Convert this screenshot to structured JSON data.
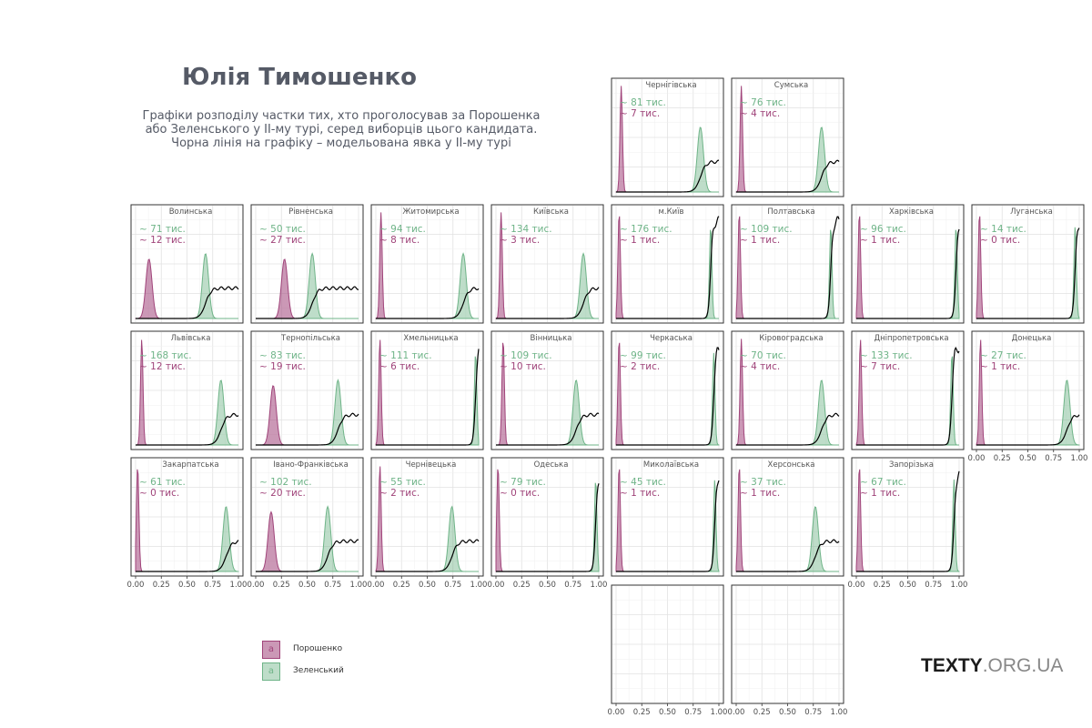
{
  "title": "Юлія Тимошенко",
  "subtitle": "Графіки розподілу частки тих, хто проголосував за Порошенка\nабо Зеленського у ІІ-му турі, серед виборців цього кандидата.\nЧорна лінія на графіку – модельована явка у ІІ-му турі",
  "brand": {
    "main": "TEXTY",
    "dot": ".ORG.UA"
  },
  "colors": {
    "poroshenko": "#a0447a",
    "zelensky": "#6fb488",
    "turnout": "#000000"
  },
  "legend": [
    {
      "name": "Порошенко",
      "key": "a",
      "color": "#a0447a"
    },
    {
      "name": "Зеленський",
      "key": "a",
      "color": "#6fb488"
    }
  ],
  "chart_data": {
    "type": "area",
    "xlim": [
      0,
      1
    ],
    "x_ticks": [
      "0.00",
      "0.25",
      "0.50",
      "0.75",
      "1.00"
    ],
    "grid": true,
    "legend_position": "bottom-left",
    "panels": [
      {
        "name": "Чернігівська",
        "row": 0,
        "col": 4,
        "zelensky_k": "81",
        "poroshenko_k": "7",
        "unit": "тис.",
        "p_center": 0.05,
        "z_center": 0.82
      },
      {
        "name": "Сумська",
        "row": 0,
        "col": 5,
        "zelensky_k": "76",
        "poroshenko_k": "4",
        "unit": "тис.",
        "p_center": 0.05,
        "z_center": 0.83
      },
      {
        "name": "Волинська",
        "row": 1,
        "col": 0,
        "zelensky_k": "71",
        "poroshenko_k": "12",
        "unit": "тис.",
        "p_center": 0.13,
        "z_center": 0.68
      },
      {
        "name": "Рівненська",
        "row": 1,
        "col": 1,
        "zelensky_k": "50",
        "poroshenko_k": "27",
        "unit": "тис.",
        "p_center": 0.28,
        "z_center": 0.55
      },
      {
        "name": "Житомирська",
        "row": 1,
        "col": 2,
        "zelensky_k": "94",
        "poroshenko_k": "8",
        "unit": "тис.",
        "p_center": 0.05,
        "z_center": 0.85
      },
      {
        "name": "Київська",
        "row": 1,
        "col": 3,
        "zelensky_k": "134",
        "poroshenko_k": "3",
        "unit": "тис.",
        "p_center": 0.05,
        "z_center": 0.85
      },
      {
        "name": "м.Київ",
        "row": 1,
        "col": 4,
        "zelensky_k": "176",
        "poroshenko_k": "1",
        "unit": "тис.",
        "p_center": 0.03,
        "z_center": 0.92
      },
      {
        "name": "Полтавська",
        "row": 1,
        "col": 5,
        "zelensky_k": "109",
        "poroshenko_k": "1",
        "unit": "тис.",
        "p_center": 0.03,
        "z_center": 0.92
      },
      {
        "name": "Харківська",
        "row": 1,
        "col": 6,
        "zelensky_k": "96",
        "poroshenko_k": "1",
        "unit": "тис.",
        "p_center": 0.03,
        "z_center": 0.97
      },
      {
        "name": "Луганська",
        "row": 1,
        "col": 7,
        "zelensky_k": "14",
        "poroshenko_k": "0",
        "unit": "тис.",
        "p_center": 0.03,
        "z_center": 0.96
      },
      {
        "name": "Львівська",
        "row": 2,
        "col": 0,
        "zelensky_k": "168",
        "poroshenko_k": "12",
        "unit": "тис.",
        "p_center": 0.06,
        "z_center": 0.83
      },
      {
        "name": "Тернопільська",
        "row": 2,
        "col": 1,
        "zelensky_k": "83",
        "poroshenko_k": "19",
        "unit": "тис.",
        "p_center": 0.17,
        "z_center": 0.8
      },
      {
        "name": "Хмельницька",
        "row": 2,
        "col": 2,
        "zelensky_k": "111",
        "poroshenko_k": "6",
        "unit": "тис.",
        "p_center": 0.04,
        "z_center": 0.97
      },
      {
        "name": "Вінницька",
        "row": 2,
        "col": 3,
        "zelensky_k": "109",
        "poroshenko_k": "10",
        "unit": "тис.",
        "p_center": 0.07,
        "z_center": 0.78
      },
      {
        "name": "Черкаська",
        "row": 2,
        "col": 4,
        "zelensky_k": "99",
        "poroshenko_k": "2",
        "unit": "тис.",
        "p_center": 0.03,
        "z_center": 0.95
      },
      {
        "name": "Кіровоградська",
        "row": 2,
        "col": 5,
        "zelensky_k": "70",
        "poroshenko_k": "4",
        "unit": "тис.",
        "p_center": 0.05,
        "z_center": 0.83
      },
      {
        "name": "Дніпропетровська",
        "row": 2,
        "col": 6,
        "zelensky_k": "133",
        "poroshenko_k": "7",
        "unit": "тис.",
        "p_center": 0.04,
        "z_center": 0.93
      },
      {
        "name": "Донецька",
        "row": 2,
        "col": 7,
        "zelensky_k": "27",
        "poroshenko_k": "1",
        "unit": "тис.",
        "p_center": 0.04,
        "z_center": 0.88
      },
      {
        "name": "Закарпатська",
        "row": 3,
        "col": 0,
        "zelensky_k": "61",
        "poroshenko_k": "0",
        "unit": "тис.",
        "p_center": 0.02,
        "z_center": 0.88
      },
      {
        "name": "Івано-Франківська",
        "row": 3,
        "col": 1,
        "zelensky_k": "102",
        "poroshenko_k": "20",
        "unit": "тис.",
        "p_center": 0.15,
        "z_center": 0.7
      },
      {
        "name": "Чернівецька",
        "row": 3,
        "col": 2,
        "zelensky_k": "55",
        "poroshenko_k": "2",
        "unit": "тис.",
        "p_center": 0.04,
        "z_center": 0.74
      },
      {
        "name": "Одеська",
        "row": 3,
        "col": 3,
        "zelensky_k": "79",
        "poroshenko_k": "0",
        "unit": "тис.",
        "p_center": 0.02,
        "z_center": 0.97
      },
      {
        "name": "Миколаївська",
        "row": 3,
        "col": 4,
        "zelensky_k": "45",
        "poroshenko_k": "1",
        "unit": "тис.",
        "p_center": 0.03,
        "z_center": 0.96
      },
      {
        "name": "Херсонська",
        "row": 3,
        "col": 5,
        "zelensky_k": "37",
        "poroshenko_k": "1",
        "unit": "тис.",
        "p_center": 0.03,
        "z_center": 0.77
      },
      {
        "name": "Запорізька",
        "row": 3,
        "col": 6,
        "zelensky_k": "67",
        "poroshenko_k": "1",
        "unit": "тис.",
        "p_center": 0.03,
        "z_center": 0.95
      },
      {
        "name": "",
        "row": 4,
        "col": 4,
        "empty": true
      },
      {
        "name": "",
        "row": 4,
        "col": 5,
        "empty": true
      }
    ]
  }
}
